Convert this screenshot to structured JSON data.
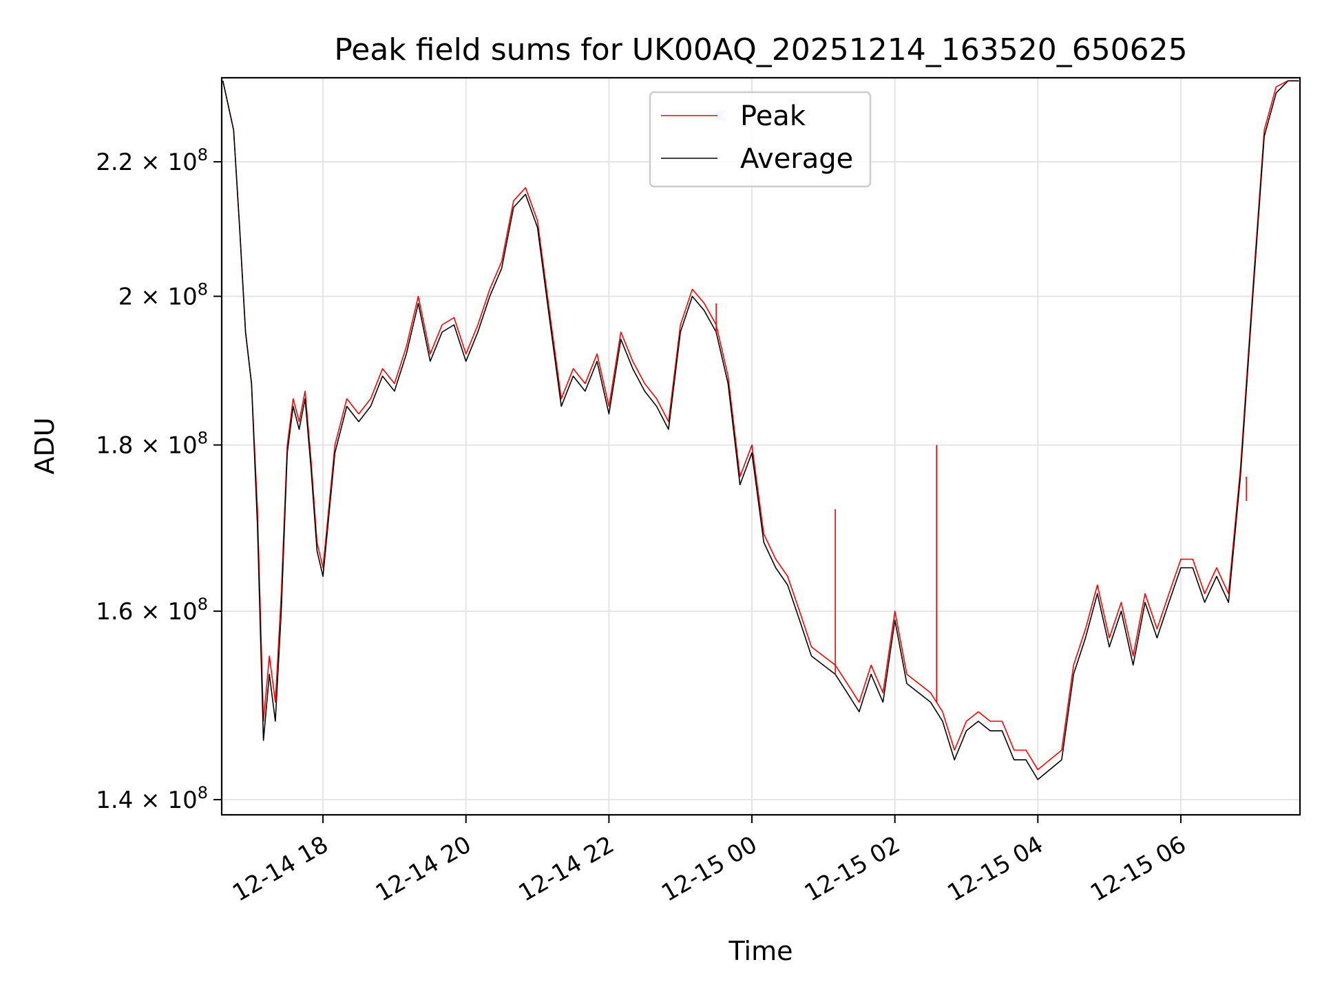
{
  "chart_data": {
    "type": "line",
    "title": "Peak field sums for UK00AQ_20251214_163520_650625",
    "xlabel": "Time",
    "ylabel": "ADU",
    "y_scale": "log",
    "xlim": [
      "2025-12-14 16:35",
      "2025-12-15 07:40"
    ],
    "ylim": [
      138500000,
      233500000
    ],
    "x_ticks": [
      "12-14 18",
      "12-14 20",
      "12-14 22",
      "12-15 00",
      "12-15 02",
      "12-15 04",
      "12-15 06"
    ],
    "y_ticks": [
      {
        "value": 140000000,
        "mantissa": "1.4",
        "label": "1.4 × 10^8"
      },
      {
        "value": 160000000,
        "mantissa": "1.6",
        "label": "1.6 × 10^8"
      },
      {
        "value": 180000000,
        "mantissa": "1.8",
        "label": "1.8 × 10^8"
      },
      {
        "value": 200000000,
        "mantissa": "2",
        "label": "2 × 10^8"
      },
      {
        "value": 220000000,
        "mantissa": "2.2",
        "label": "2.2 × 10^8"
      }
    ],
    "grid": true,
    "legend_position": "top-center",
    "x": [
      "2025-12-14 16:36",
      "2025-12-14 16:45",
      "2025-12-14 16:50",
      "2025-12-14 16:55",
      "2025-12-14 17:00",
      "2025-12-14 17:05",
      "2025-12-14 17:10",
      "2025-12-14 17:15",
      "2025-12-14 17:20",
      "2025-12-14 17:25",
      "2025-12-14 17:30",
      "2025-12-14 17:35",
      "2025-12-14 17:40",
      "2025-12-14 17:45",
      "2025-12-14 17:50",
      "2025-12-14 17:55",
      "2025-12-14 18:00",
      "2025-12-14 18:10",
      "2025-12-14 18:20",
      "2025-12-14 18:30",
      "2025-12-14 18:40",
      "2025-12-14 18:50",
      "2025-12-14 19:00",
      "2025-12-14 19:10",
      "2025-12-14 19:20",
      "2025-12-14 19:30",
      "2025-12-14 19:40",
      "2025-12-14 19:50",
      "2025-12-14 20:00",
      "2025-12-14 20:10",
      "2025-12-14 20:20",
      "2025-12-14 20:30",
      "2025-12-14 20:40",
      "2025-12-14 20:50",
      "2025-12-14 21:00",
      "2025-12-14 21:10",
      "2025-12-14 21:20",
      "2025-12-14 21:30",
      "2025-12-14 21:40",
      "2025-12-14 21:50",
      "2025-12-14 22:00",
      "2025-12-14 22:10",
      "2025-12-14 22:20",
      "2025-12-14 22:30",
      "2025-12-14 22:40",
      "2025-12-14 22:50",
      "2025-12-14 23:00",
      "2025-12-14 23:10",
      "2025-12-14 23:20",
      "2025-12-14 23:30",
      "2025-12-14 23:40",
      "2025-12-14 23:50",
      "2025-12-15 00:00",
      "2025-12-15 00:10",
      "2025-12-15 00:20",
      "2025-12-15 00:30",
      "2025-12-15 00:40",
      "2025-12-15 00:50",
      "2025-12-15 01:00",
      "2025-12-15 01:10",
      "2025-12-15 01:20",
      "2025-12-15 01:30",
      "2025-12-15 01:40",
      "2025-12-15 01:50",
      "2025-12-15 02:00",
      "2025-12-15 02:10",
      "2025-12-15 02:20",
      "2025-12-15 02:30",
      "2025-12-15 02:40",
      "2025-12-15 02:50",
      "2025-12-15 03:00",
      "2025-12-15 03:10",
      "2025-12-15 03:20",
      "2025-12-15 03:30",
      "2025-12-15 03:40",
      "2025-12-15 03:50",
      "2025-12-15 04:00",
      "2025-12-15 04:10",
      "2025-12-15 04:20",
      "2025-12-15 04:30",
      "2025-12-15 04:40",
      "2025-12-15 04:50",
      "2025-12-15 05:00",
      "2025-12-15 05:10",
      "2025-12-15 05:20",
      "2025-12-15 05:30",
      "2025-12-15 05:40",
      "2025-12-15 05:50",
      "2025-12-15 06:00",
      "2025-12-15 06:10",
      "2025-12-15 06:20",
      "2025-12-15 06:30",
      "2025-12-15 06:40",
      "2025-12-15 06:50",
      "2025-12-15 07:00",
      "2025-12-15 07:10",
      "2025-12-15 07:20",
      "2025-12-15 07:30",
      "2025-12-15 07:39"
    ],
    "series": [
      {
        "name": "Peak",
        "color": "#ff0000",
        "values": [
          233000000,
          225000000,
          210000000,
          195000000,
          188000000,
          172000000,
          148000000,
          155000000,
          150000000,
          162000000,
          180000000,
          186000000,
          183000000,
          187000000,
          178000000,
          168000000,
          165000000,
          180000000,
          186000000,
          184000000,
          186000000,
          190000000,
          188000000,
          193000000,
          200000000,
          192000000,
          196000000,
          197000000,
          192000000,
          196000000,
          201000000,
          205000000,
          214000000,
          216000000,
          211000000,
          198000000,
          186000000,
          190000000,
          188000000,
          192000000,
          185000000,
          195000000,
          191000000,
          188000000,
          186000000,
          183000000,
          196000000,
          201000000,
          199000000,
          196000000,
          189000000,
          176000000,
          180000000,
          169000000,
          166000000,
          164000000,
          160000000,
          156000000,
          155000000,
          154000000,
          152000000,
          150000000,
          154000000,
          151000000,
          160000000,
          153000000,
          152000000,
          151000000,
          149000000,
          145000000,
          148000000,
          149000000,
          148000000,
          148000000,
          145000000,
          145000000,
          143000000,
          144000000,
          145000000,
          154000000,
          158000000,
          163000000,
          157000000,
          161000000,
          155000000,
          162000000,
          158000000,
          162000000,
          166000000,
          166000000,
          162000000,
          165000000,
          162000000,
          177000000,
          200000000,
          225000000,
          232000000,
          233000000,
          233000000
        ]
      },
      {
        "name": "Average",
        "color": "#000000",
        "values": [
          233000000,
          225000000,
          210000000,
          195000000,
          188000000,
          170000000,
          146000000,
          153000000,
          148000000,
          160000000,
          179000000,
          185000000,
          182000000,
          186000000,
          177000000,
          167000000,
          164000000,
          179000000,
          185000000,
          183000000,
          185000000,
          189000000,
          187000000,
          192000000,
          199000000,
          191000000,
          195000000,
          196000000,
          191000000,
          195000000,
          200000000,
          204000000,
          213000000,
          215000000,
          210000000,
          197000000,
          185000000,
          189000000,
          187000000,
          191000000,
          184000000,
          194000000,
          190000000,
          187000000,
          185000000,
          182000000,
          195000000,
          200000000,
          198000000,
          195000000,
          188000000,
          175000000,
          179000000,
          168000000,
          165000000,
          163000000,
          159000000,
          155000000,
          154000000,
          153000000,
          151000000,
          149000000,
          153000000,
          150000000,
          159000000,
          152000000,
          151000000,
          150000000,
          148000000,
          144000000,
          147000000,
          148000000,
          147000000,
          147000000,
          144000000,
          144000000,
          142000000,
          143000000,
          144000000,
          153000000,
          157000000,
          162000000,
          156000000,
          160000000,
          154000000,
          161000000,
          157000000,
          161000000,
          165000000,
          165000000,
          161000000,
          164000000,
          161000000,
          176000000,
          199000000,
          224000000,
          231000000,
          233000000,
          233000000
        ]
      }
    ],
    "spikes": [
      {
        "series": "Peak",
        "x": "2025-12-15 01:10",
        "value": 172000000
      },
      {
        "series": "Peak",
        "x": "2025-12-15 02:35",
        "value": 180000000
      },
      {
        "series": "Peak",
        "x": "2025-12-14 23:30",
        "value": 199000000
      },
      {
        "series": "Peak",
        "x": "2025-12-15 06:55",
        "value": 173000000
      }
    ]
  }
}
